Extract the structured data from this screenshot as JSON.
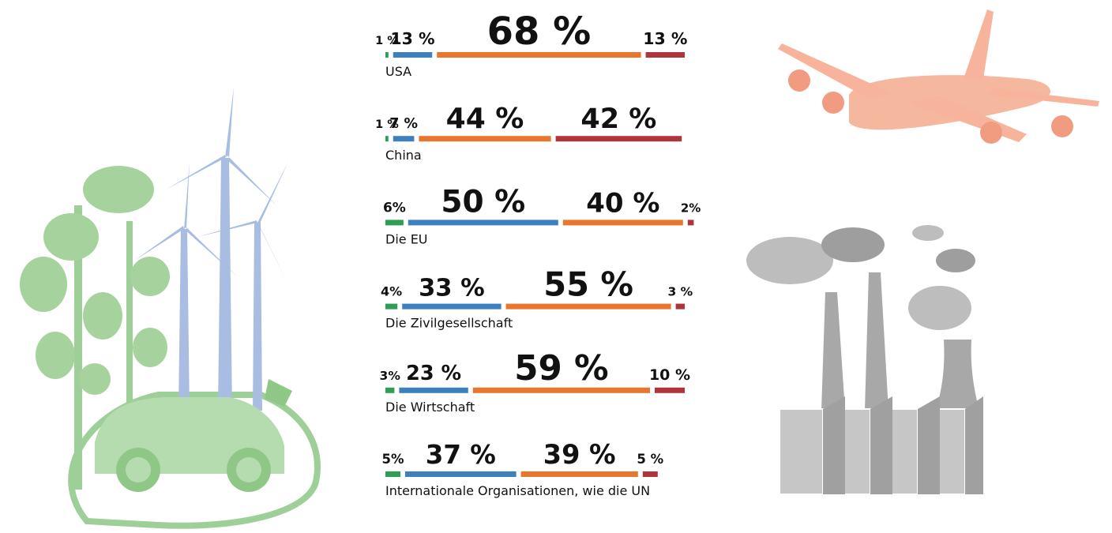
{
  "chart_data": {
    "type": "bar",
    "categories": [
      "USA",
      "China",
      "Die EU",
      "Die Zivilgesellschaft",
      "Die Wirtschaft",
      "Internationale Organisationen, wie die UN"
    ],
    "series": [
      {
        "color": "#2e9e52",
        "values": [
          1,
          1,
          6,
          4,
          3,
          5
        ],
        "value_labels": [
          "1 %",
          "1 %",
          "6%",
          "4%",
          "3%",
          "5%"
        ]
      },
      {
        "color": "#3d80c0",
        "values": [
          13,
          7,
          50,
          33,
          23,
          37
        ],
        "value_labels": [
          "13 %",
          "7 %",
          "50 %",
          "33 %",
          "23 %",
          "37 %"
        ]
      },
      {
        "color": "#e8762f",
        "values": [
          68,
          44,
          40,
          55,
          59,
          39
        ],
        "value_labels": [
          "68 %",
          "44 %",
          "40 %",
          "55 %",
          "59 %",
          "39 %"
        ]
      },
      {
        "color": "#b0343b",
        "values": [
          13,
          42,
          2,
          3,
          10,
          5
        ],
        "value_labels": [
          "13 %",
          "42 %",
          "2%",
          "3 %",
          "10 %",
          "5 %"
        ]
      }
    ]
  }
}
